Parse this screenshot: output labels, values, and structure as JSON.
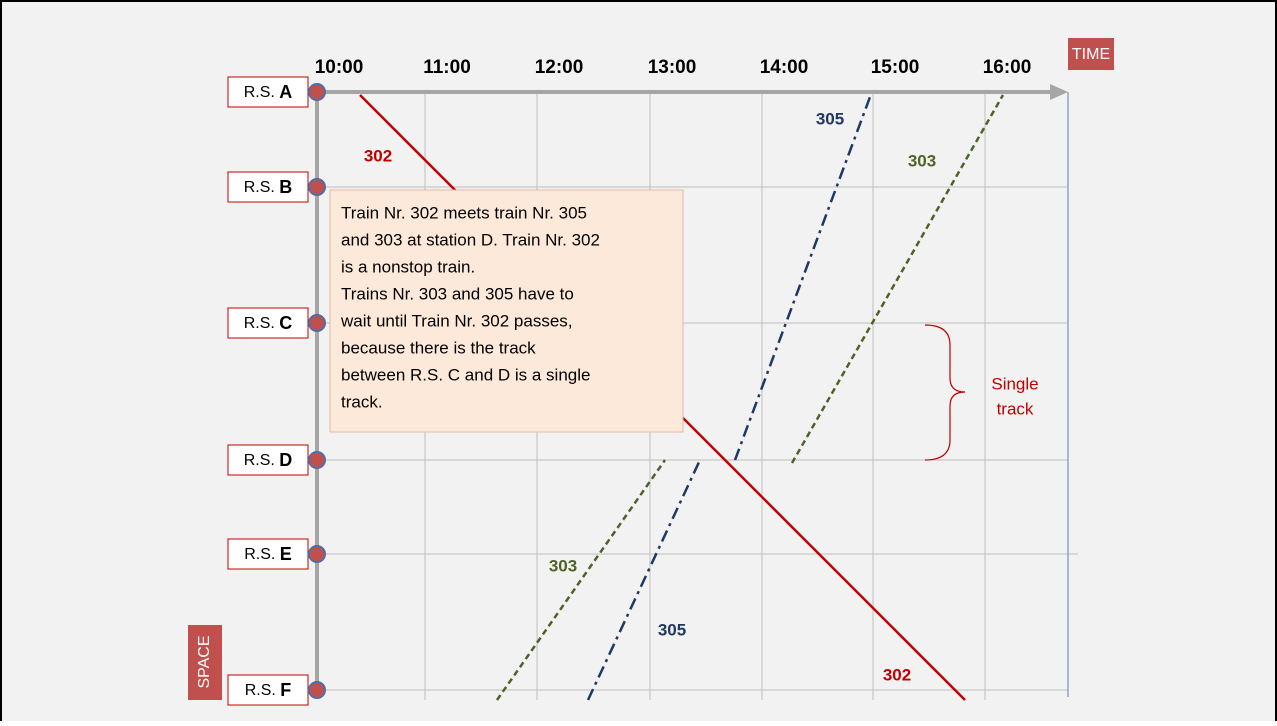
{
  "axes": {
    "time": "TIME",
    "space": "SPACE"
  },
  "times": [
    "10:00",
    "11:00",
    "12:00",
    "13:00",
    "14:00",
    "15:00",
    "16:00"
  ],
  "stations": [
    {
      "prefix": "R.S.",
      "name": "A"
    },
    {
      "prefix": "R.S.",
      "name": "B"
    },
    {
      "prefix": "R.S.",
      "name": "C"
    },
    {
      "prefix": "R.S.",
      "name": "D"
    },
    {
      "prefix": "R.S.",
      "name": "E"
    },
    {
      "prefix": "R.S.",
      "name": "F"
    }
  ],
  "trains": {
    "t302": "302",
    "t305": "305",
    "t303": "303"
  },
  "note": [
    "Train Nr. 302 meets train Nr. 305",
    "and 303 at station D. Train Nr. 302",
    "is a nonstop train.",
    "Trains Nr. 303 and 305 have to",
    "wait until Train Nr. 302 passes,",
    "because there is the track",
    "between R.S. C and D is a single",
    "track."
  ],
  "single_track": [
    "Single",
    "track"
  ]
}
